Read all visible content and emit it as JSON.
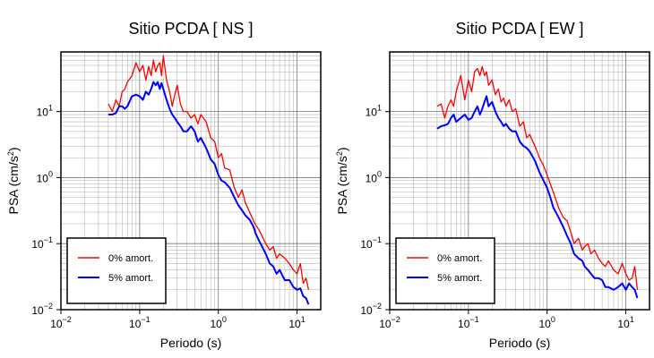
{
  "chart_data": [
    {
      "type": "line",
      "title": "Sitio PCDA [ NS ]",
      "xlabel": "Periodo (s)",
      "ylabel_main": "PSA (cm/s",
      "ylabel_sup": "2",
      "ylabel_tail": ")",
      "xscale": "log",
      "yscale": "log",
      "xlim": [
        0.01,
        20
      ],
      "ylim": [
        0.01,
        80
      ],
      "grid": true,
      "legend_position": "bottom-left",
      "x_ticks": [
        {
          "base": "10",
          "exp": "−2"
        },
        {
          "base": "10",
          "exp": "−1"
        },
        {
          "base": "10",
          "exp": "0"
        },
        {
          "base": "10",
          "exp": "1"
        }
      ],
      "y_ticks": [
        {
          "base": "10",
          "exp": "−2"
        },
        {
          "base": "10",
          "exp": "−1"
        },
        {
          "base": "10",
          "exp": "0"
        },
        {
          "base": "10",
          "exp": "1"
        }
      ],
      "series": [
        {
          "name": "0% amort.",
          "color": "#ff0000",
          "x": [
            0.04,
            0.045,
            0.05,
            0.055,
            0.06,
            0.065,
            0.07,
            0.08,
            0.09,
            0.1,
            0.11,
            0.12,
            0.13,
            0.14,
            0.15,
            0.16,
            0.17,
            0.18,
            0.19,
            0.2,
            0.22,
            0.24,
            0.26,
            0.28,
            0.3,
            0.33,
            0.36,
            0.4,
            0.45,
            0.5,
            0.55,
            0.6,
            0.7,
            0.8,
            0.9,
            1.0,
            1.1,
            1.2,
            1.4,
            1.6,
            1.8,
            2.0,
            2.2,
            2.5,
            2.8,
            3.0,
            3.3,
            3.6,
            4.0,
            4.5,
            5.0,
            5.5,
            6.0,
            7.0,
            8.0,
            9.0,
            10.0,
            11.0,
            12.0,
            13.0,
            14.0
          ],
          "y": [
            13,
            10,
            15,
            12,
            20,
            22,
            28,
            35,
            55,
            40,
            50,
            30,
            48,
            35,
            60,
            40,
            50,
            55,
            35,
            70,
            30,
            20,
            12,
            18,
            25,
            13,
            10,
            10,
            8,
            9,
            6.5,
            9,
            7,
            4,
            3.5,
            2,
            2.3,
            1.4,
            1.3,
            0.7,
            0.5,
            0.65,
            0.42,
            0.3,
            0.22,
            0.19,
            0.16,
            0.13,
            0.1,
            0.08,
            0.09,
            0.06,
            0.07,
            0.06,
            0.05,
            0.04,
            0.035,
            0.05,
            0.025,
            0.03,
            0.02
          ]
        },
        {
          "name": "5% amort.",
          "color": "#0000ff",
          "x": [
            0.04,
            0.045,
            0.05,
            0.055,
            0.06,
            0.065,
            0.07,
            0.08,
            0.09,
            0.1,
            0.11,
            0.12,
            0.13,
            0.14,
            0.15,
            0.16,
            0.17,
            0.18,
            0.19,
            0.2,
            0.22,
            0.24,
            0.26,
            0.28,
            0.3,
            0.33,
            0.36,
            0.4,
            0.45,
            0.5,
            0.55,
            0.6,
            0.7,
            0.8,
            0.9,
            1.0,
            1.1,
            1.2,
            1.4,
            1.6,
            1.8,
            2.0,
            2.2,
            2.5,
            2.8,
            3.0,
            3.3,
            3.6,
            4.0,
            4.5,
            5.0,
            5.5,
            6.0,
            7.0,
            8.0,
            9.0,
            10.0,
            11.0,
            12.0,
            13.0,
            14.0
          ],
          "y": [
            9,
            9,
            9.5,
            12,
            12,
            11,
            12,
            17,
            18,
            17,
            15,
            20,
            18,
            22,
            28,
            25,
            28,
            22,
            27,
            22,
            15,
            11,
            9,
            8,
            7,
            6,
            5,
            5,
            6,
            5,
            3.5,
            4,
            2.8,
            1.9,
            1.6,
            1.1,
            0.9,
            0.85,
            0.7,
            0.5,
            0.38,
            0.32,
            0.27,
            0.23,
            0.18,
            0.14,
            0.11,
            0.09,
            0.07,
            0.05,
            0.045,
            0.035,
            0.04,
            0.028,
            0.028,
            0.022,
            0.02,
            0.021,
            0.016,
            0.015,
            0.012
          ]
        }
      ]
    },
    {
      "type": "line",
      "title": "Sitio PCDA [ EW ]",
      "xlabel": "Periodo (s)",
      "ylabel_main": "PSA (cm/s",
      "ylabel_sup": "2",
      "ylabel_tail": ")",
      "xscale": "log",
      "yscale": "log",
      "xlim": [
        0.01,
        20
      ],
      "ylim": [
        0.01,
        80
      ],
      "grid": true,
      "legend_position": "bottom-left",
      "x_ticks": [
        {
          "base": "10",
          "exp": "−2"
        },
        {
          "base": "10",
          "exp": "−1"
        },
        {
          "base": "10",
          "exp": "0"
        },
        {
          "base": "10",
          "exp": "1"
        }
      ],
      "y_ticks": [
        {
          "base": "10",
          "exp": "−2"
        },
        {
          "base": "10",
          "exp": "−1"
        },
        {
          "base": "10",
          "exp": "0"
        },
        {
          "base": "10",
          "exp": "1"
        }
      ],
      "series": [
        {
          "name": "0% amort.",
          "color": "#ff0000",
          "x": [
            0.04,
            0.045,
            0.05,
            0.055,
            0.06,
            0.065,
            0.07,
            0.08,
            0.09,
            0.1,
            0.11,
            0.12,
            0.13,
            0.14,
            0.15,
            0.16,
            0.17,
            0.18,
            0.2,
            0.22,
            0.24,
            0.26,
            0.28,
            0.3,
            0.33,
            0.36,
            0.4,
            0.45,
            0.5,
            0.55,
            0.6,
            0.7,
            0.8,
            0.9,
            1.0,
            1.1,
            1.2,
            1.4,
            1.6,
            1.8,
            2.0,
            2.2,
            2.5,
            2.8,
            3.0,
            3.3,
            3.6,
            4.0,
            4.5,
            5.0,
            5.5,
            6.0,
            7.0,
            8.0,
            9.0,
            10.0,
            11.0,
            12.0,
            13.0,
            14.0
          ],
          "y": [
            12,
            13,
            8,
            12,
            15,
            12,
            20,
            35,
            15,
            30,
            20,
            40,
            45,
            35,
            48,
            35,
            40,
            25,
            30,
            18,
            22,
            14,
            16,
            12,
            15,
            10,
            11,
            6,
            7,
            4,
            4.5,
            3,
            2,
            1.5,
            1.1,
            0.8,
            0.6,
            0.35,
            0.25,
            0.22,
            0.15,
            0.1,
            0.12,
            0.08,
            0.09,
            0.1,
            0.07,
            0.08,
            0.06,
            0.05,
            0.045,
            0.055,
            0.04,
            0.035,
            0.05,
            0.035,
            0.028,
            0.03,
            0.045,
            0.02
          ]
        },
        {
          "name": "5% amort.",
          "color": "#0000ff",
          "x": [
            0.04,
            0.045,
            0.05,
            0.055,
            0.06,
            0.065,
            0.07,
            0.08,
            0.09,
            0.1,
            0.11,
            0.12,
            0.13,
            0.14,
            0.15,
            0.16,
            0.17,
            0.18,
            0.2,
            0.22,
            0.24,
            0.26,
            0.28,
            0.3,
            0.33,
            0.36,
            0.4,
            0.45,
            0.5,
            0.55,
            0.6,
            0.7,
            0.8,
            0.9,
            1.0,
            1.1,
            1.2,
            1.4,
            1.6,
            1.8,
            2.0,
            2.2,
            2.5,
            2.8,
            3.0,
            3.3,
            3.6,
            4.0,
            4.5,
            5.0,
            5.5,
            6.0,
            7.0,
            8.0,
            9.0,
            10.0,
            11.0,
            12.0,
            13.0,
            14.0
          ],
          "y": [
            5.5,
            6,
            6.2,
            6.5,
            8,
            9,
            7,
            8,
            9,
            7.5,
            8,
            10,
            12,
            9,
            11,
            14,
            17,
            12,
            14,
            10,
            8,
            7,
            6,
            6.5,
            5.5,
            5,
            5,
            3.5,
            3,
            2.8,
            2.5,
            1.8,
            1.2,
            0.9,
            0.7,
            0.5,
            0.35,
            0.25,
            0.18,
            0.13,
            0.1,
            0.07,
            0.06,
            0.055,
            0.045,
            0.04,
            0.035,
            0.03,
            0.03,
            0.028,
            0.022,
            0.022,
            0.02,
            0.022,
            0.025,
            0.02,
            0.025,
            0.022,
            0.02,
            0.015
          ]
        }
      ]
    }
  ]
}
